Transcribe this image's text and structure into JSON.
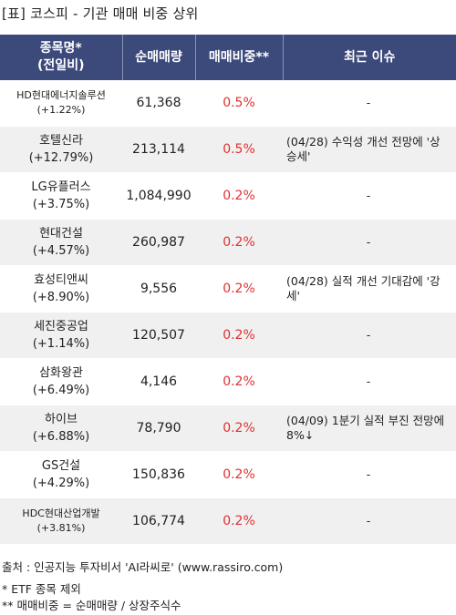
{
  "title": "[표] 코스피 - 기관 매매 비중 상위",
  "headers": {
    "name_line1": "종목명*",
    "name_line2": "(전일비)",
    "volume": "순매매량",
    "ratio": "매매비중**",
    "issue": "최근 이슈"
  },
  "rows": [
    {
      "name": "HD현대에너지솔루션",
      "change": "(+1.22%)",
      "volume": "61,368",
      "ratio": "0.5%",
      "issue": "-"
    },
    {
      "name": "호텔신라",
      "change": "(+12.79%)",
      "volume": "213,114",
      "ratio": "0.5%",
      "issue": "(04/28) 수익성 개선 전망에 '상승세'"
    },
    {
      "name": "LG유플러스",
      "change": "(+3.75%)",
      "volume": "1,084,990",
      "ratio": "0.2%",
      "issue": "-"
    },
    {
      "name": "현대건설",
      "change": "(+4.57%)",
      "volume": "260,987",
      "ratio": "0.2%",
      "issue": "-"
    },
    {
      "name": "효성티앤씨",
      "change": "(+8.90%)",
      "volume": "9,556",
      "ratio": "0.2%",
      "issue": "(04/28) 실적 개선 기대감에 '강세'"
    },
    {
      "name": "세진중공업",
      "change": "(+1.14%)",
      "volume": "120,507",
      "ratio": "0.2%",
      "issue": "-"
    },
    {
      "name": "삼화왕관",
      "change": "(+6.49%)",
      "volume": "4,146",
      "ratio": "0.2%",
      "issue": "-"
    },
    {
      "name": "하이브",
      "change": "(+6.88%)",
      "volume": "78,790",
      "ratio": "0.2%",
      "issue": "(04/09) 1분기 실적 부진 전망에 8%↓"
    },
    {
      "name": "GS건설",
      "change": "(+4.29%)",
      "volume": "150,836",
      "ratio": "0.2%",
      "issue": "-"
    },
    {
      "name": "HDC현대산업개발",
      "change": "(+3.81%)",
      "volume": "106,774",
      "ratio": "0.2%",
      "issue": "-"
    }
  ],
  "footer": {
    "source": "출처 : 인공지능 투자비서 'AI라씨로' (www.rassiro.com)",
    "note1": "* ETF 종목 제외",
    "note2": "** 매매비중 = 순매매량 / 상장주식수"
  },
  "colors": {
    "header_bg": "#3b4a7a",
    "ratio_text": "#e03030",
    "alt_row": "#f0f0f0"
  }
}
